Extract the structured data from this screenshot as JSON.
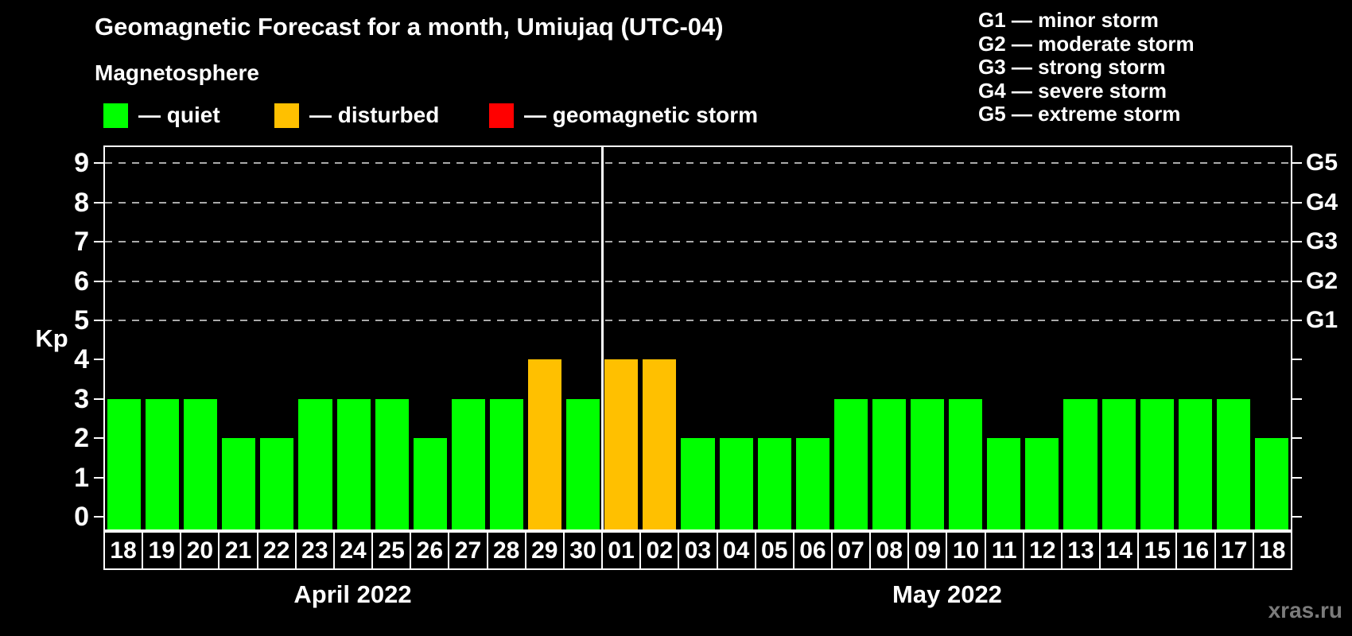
{
  "title": "Geomagnetic Forecast for a month, Umiujaq (UTC-04)",
  "subtitle": "Magnetosphere",
  "legend": {
    "items": [
      {
        "color": "#00ff00",
        "label": "— quiet"
      },
      {
        "color": "#ffc000",
        "label": "— disturbed"
      },
      {
        "color": "#ff0000",
        "label": "— geomagnetic storm"
      }
    ]
  },
  "g_legend": [
    "G1 — minor storm",
    "G2 — moderate storm",
    "G3 — strong storm",
    "G4 — severe storm",
    "G5 — extreme storm"
  ],
  "watermark": "xras.ru",
  "chart_data": {
    "type": "bar",
    "title": "Geomagnetic Forecast for a month, Umiujaq (UTC-04)",
    "ylabel": "Kp",
    "ylim": [
      0,
      9
    ],
    "yticks": [
      0,
      1,
      2,
      3,
      4,
      5,
      6,
      7,
      8,
      9
    ],
    "gridlines_at": [
      5,
      6,
      7,
      8,
      9
    ],
    "grid": "dashed, only at Kp 5-9",
    "legend_position": "top",
    "right_axis": [
      {
        "kp": 5,
        "label": "G1"
      },
      {
        "kp": 6,
        "label": "G2"
      },
      {
        "kp": 7,
        "label": "G3"
      },
      {
        "kp": 8,
        "label": "G4"
      },
      {
        "kp": 9,
        "label": "G5"
      }
    ],
    "status_colors": {
      "quiet": "#00ff00",
      "disturbed": "#ffc000",
      "storm": "#ff0000"
    },
    "months": [
      {
        "label": "April 2022",
        "days": [
          {
            "day": "18",
            "kp": 3,
            "status": "quiet"
          },
          {
            "day": "19",
            "kp": 3,
            "status": "quiet"
          },
          {
            "day": "20",
            "kp": 3,
            "status": "quiet"
          },
          {
            "day": "21",
            "kp": 2,
            "status": "quiet"
          },
          {
            "day": "22",
            "kp": 2,
            "status": "quiet"
          },
          {
            "day": "23",
            "kp": 3,
            "status": "quiet"
          },
          {
            "day": "24",
            "kp": 3,
            "status": "quiet"
          },
          {
            "day": "25",
            "kp": 3,
            "status": "quiet"
          },
          {
            "day": "26",
            "kp": 2,
            "status": "quiet"
          },
          {
            "day": "27",
            "kp": 3,
            "status": "quiet"
          },
          {
            "day": "28",
            "kp": 3,
            "status": "quiet"
          },
          {
            "day": "29",
            "kp": 4,
            "status": "disturbed"
          },
          {
            "day": "30",
            "kp": 3,
            "status": "quiet"
          }
        ]
      },
      {
        "label": "May 2022",
        "days": [
          {
            "day": "01",
            "kp": 4,
            "status": "disturbed"
          },
          {
            "day": "02",
            "kp": 4,
            "status": "disturbed"
          },
          {
            "day": "03",
            "kp": 2,
            "status": "quiet"
          },
          {
            "day": "04",
            "kp": 2,
            "status": "quiet"
          },
          {
            "day": "05",
            "kp": 2,
            "status": "quiet"
          },
          {
            "day": "06",
            "kp": 2,
            "status": "quiet"
          },
          {
            "day": "07",
            "kp": 3,
            "status": "quiet"
          },
          {
            "day": "08",
            "kp": 3,
            "status": "quiet"
          },
          {
            "day": "09",
            "kp": 3,
            "status": "quiet"
          },
          {
            "day": "10",
            "kp": 3,
            "status": "quiet"
          },
          {
            "day": "11",
            "kp": 2,
            "status": "quiet"
          },
          {
            "day": "12",
            "kp": 2,
            "status": "quiet"
          },
          {
            "day": "13",
            "kp": 3,
            "status": "quiet"
          },
          {
            "day": "14",
            "kp": 3,
            "status": "quiet"
          },
          {
            "day": "15",
            "kp": 3,
            "status": "quiet"
          },
          {
            "day": "16",
            "kp": 3,
            "status": "quiet"
          },
          {
            "day": "17",
            "kp": 3,
            "status": "quiet"
          },
          {
            "day": "18",
            "kp": 2,
            "status": "quiet"
          }
        ]
      }
    ]
  }
}
